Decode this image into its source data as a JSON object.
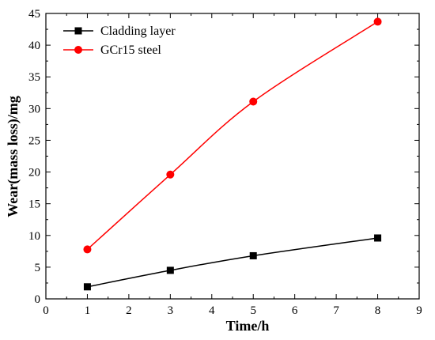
{
  "chart_data": {
    "type": "line",
    "xlabel": "Time/h",
    "ylabel": "Wear(mass loss)/mg",
    "xlim": [
      0,
      9
    ],
    "ylim": [
      0,
      45
    ],
    "xticks": [
      0,
      1,
      2,
      3,
      4,
      5,
      6,
      7,
      8,
      9
    ],
    "yticks": [
      0,
      5,
      10,
      15,
      20,
      25,
      30,
      35,
      40,
      45
    ],
    "grid": false,
    "legend_position": "top-left",
    "x": [
      1,
      3,
      5,
      8
    ],
    "series": [
      {
        "name": "Cladding layer",
        "values": [
          1.9,
          4.5,
          6.8,
          9.6
        ],
        "color": "#000000",
        "marker": "square"
      },
      {
        "name": "GCr15 steel",
        "values": [
          7.8,
          19.6,
          31.1,
          43.7
        ],
        "color": "#ff0000",
        "marker": "circle"
      }
    ]
  }
}
